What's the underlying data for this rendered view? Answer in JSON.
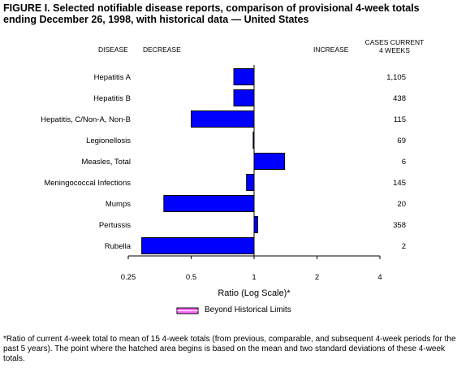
{
  "title": {
    "line1": "FIGURE I. Selected notifiable disease reports, comparison of provisional 4-week totals",
    "line2": "ending December 26, 1998, with historical data — United States"
  },
  "headers": {
    "disease": "DISEASE",
    "decrease": "DECREASE",
    "increase": "INCREASE",
    "cases_line1": "CASES CURRENT",
    "cases_line2": "4 WEEKS"
  },
  "legend": {
    "label": "Beyond Historical Limits",
    "swatch_color": "#ff00ff"
  },
  "footnote": {
    "marker": "*",
    "text": "Ratio of current 4-week total to mean of 15 4-week totals (from previous, comparable, and subsequent 4-week periods for the past 5 years). The point where the hatched area begins is based on the mean and two standard deviations of these 4-week totals."
  },
  "colors": {
    "bar_fill": "#0000ff",
    "bar_stroke": "#000000"
  },
  "chart_data": {
    "type": "bar",
    "orientation": "horizontal",
    "x_scale": "log2",
    "xlabel": "Ratio (Log Scale)*",
    "xlim": [
      0.25,
      4
    ],
    "xticks": [
      0.25,
      0.5,
      1,
      2,
      4
    ],
    "xtick_labels": [
      "0.25",
      "0.5",
      "1",
      "2",
      "4"
    ],
    "baseline": 1,
    "categories": [
      "Hepatitis A",
      "Hepatitis B",
      "Hepatitis, C/Non-A, Non-B",
      "Legionellosis",
      "Measles, Total",
      "Meningococcal Infections",
      "Mumps",
      "Pertussis",
      "Rubella"
    ],
    "values": [
      0.8,
      0.8,
      0.5,
      0.99,
      1.4,
      0.92,
      0.37,
      1.04,
      0.29
    ],
    "cases_current_4_weeks": [
      "1,105",
      "438",
      "115",
      "69",
      "6",
      "145",
      "20",
      "358",
      "2"
    ]
  }
}
